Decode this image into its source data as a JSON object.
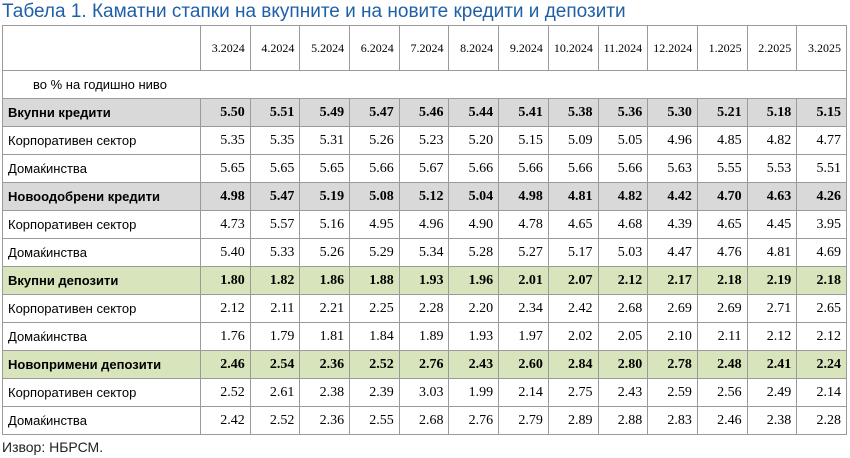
{
  "title": "Табела 1. Каматни стапки на вкупните и на новите кредити и депозити",
  "table": {
    "columns": [
      "3.2024",
      "4.2024",
      "5.2024",
      "6.2024",
      "7.2024",
      "8.2024",
      "9.2024",
      "10.2024",
      "11.2024",
      "12.2024",
      "1.2025",
      "2.2025",
      "3.2025"
    ],
    "unit": "во % на годишно ниво",
    "rows": [
      {
        "label": "Вкупни кредити",
        "values": [
          "5.50",
          "5.51",
          "5.49",
          "5.47",
          "5.46",
          "5.44",
          "5.41",
          "5.38",
          "5.36",
          "5.30",
          "5.21",
          "5.18",
          "5.15"
        ]
      },
      {
        "label": "Корпоративен сектор",
        "values": [
          "5.35",
          "5.35",
          "5.31",
          "5.26",
          "5.23",
          "5.20",
          "5.15",
          "5.09",
          "5.05",
          "4.96",
          "4.85",
          "4.82",
          "4.77"
        ]
      },
      {
        "label": "Домаќинства",
        "values": [
          "5.65",
          "5.65",
          "5.65",
          "5.66",
          "5.67",
          "5.66",
          "5.66",
          "5.66",
          "5.66",
          "5.63",
          "5.55",
          "5.53",
          "5.51"
        ]
      },
      {
        "label": "Новоодобрени кредити",
        "values": [
          "4.98",
          "5.47",
          "5.19",
          "5.08",
          "5.12",
          "5.04",
          "4.98",
          "4.81",
          "4.82",
          "4.42",
          "4.70",
          "4.63",
          "4.26"
        ]
      },
      {
        "label": "Корпоративен сектор",
        "values": [
          "4.73",
          "5.57",
          "5.16",
          "4.95",
          "4.96",
          "4.90",
          "4.78",
          "4.65",
          "4.68",
          "4.39",
          "4.65",
          "4.45",
          "3.95"
        ]
      },
      {
        "label": "Домаќинства",
        "values": [
          "5.40",
          "5.33",
          "5.26",
          "5.29",
          "5.34",
          "5.28",
          "5.27",
          "5.17",
          "5.03",
          "4.47",
          "4.76",
          "4.81",
          "4.69"
        ]
      },
      {
        "label": "Вкупни депозити",
        "values": [
          "1.80",
          "1.82",
          "1.86",
          "1.88",
          "1.93",
          "1.96",
          "2.01",
          "2.07",
          "2.12",
          "2.17",
          "2.18",
          "2.19",
          "2.18"
        ]
      },
      {
        "label": "Корпоративен сектор",
        "values": [
          "2.12",
          "2.11",
          "2.21",
          "2.25",
          "2.28",
          "2.20",
          "2.34",
          "2.42",
          "2.68",
          "2.69",
          "2.69",
          "2.71",
          "2.65"
        ]
      },
      {
        "label": "Домаќинства",
        "values": [
          "1.76",
          "1.79",
          "1.81",
          "1.84",
          "1.89",
          "1.93",
          "1.97",
          "2.02",
          "2.05",
          "2.10",
          "2.11",
          "2.12",
          "2.12"
        ]
      },
      {
        "label": "Новопримени депозити",
        "values": [
          "2.46",
          "2.54",
          "2.36",
          "2.52",
          "2.76",
          "2.43",
          "2.60",
          "2.84",
          "2.80",
          "2.78",
          "2.48",
          "2.41",
          "2.24"
        ]
      },
      {
        "label": "Корпоративен сектор",
        "values": [
          "2.52",
          "2.61",
          "2.38",
          "2.39",
          "3.03",
          "1.99",
          "2.14",
          "2.75",
          "2.43",
          "2.59",
          "2.56",
          "2.49",
          "2.14"
        ]
      },
      {
        "label": "Домаќинства",
        "values": [
          "2.42",
          "2.52",
          "2.36",
          "2.55",
          "2.68",
          "2.76",
          "2.79",
          "2.89",
          "2.88",
          "2.83",
          "2.46",
          "2.38",
          "2.28"
        ]
      }
    ]
  },
  "source": "Извор: НБРСМ."
}
